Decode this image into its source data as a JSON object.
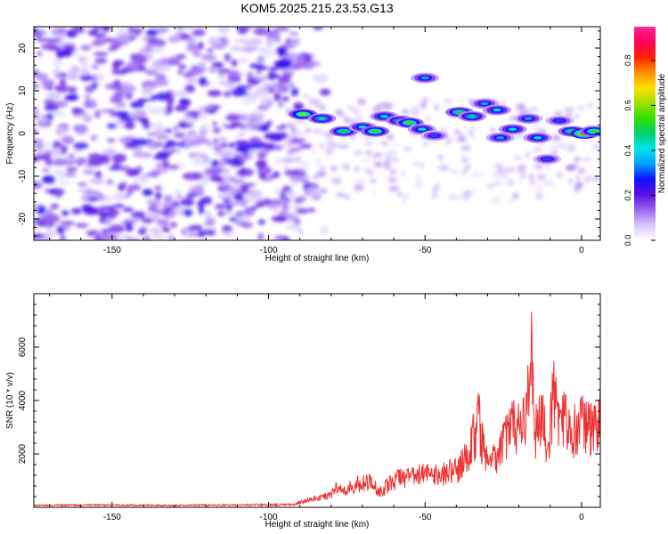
{
  "title": "KOM5.2025.215.23.53.G13",
  "colors": {
    "snr_line": "#ee3030",
    "colorbar": [
      "#ffffff",
      "#d8c8ff",
      "#9a66f0",
      "#5a10e0",
      "#1010ff",
      "#00a0ff",
      "#00e6e6",
      "#00d070",
      "#30e000",
      "#a0e000",
      "#ffe000",
      "#ff8c00",
      "#ff2000",
      "#ff0060",
      "#ff2890"
    ]
  },
  "chart_data": [
    {
      "type": "heatmap",
      "title": "KOM5.2025.215.23.53.G13",
      "xlabel": "Height of straight line (km)",
      "ylabel": "Frequency (Hz)",
      "xlim": [
        -175,
        6
      ],
      "ylim": [
        -25,
        25
      ],
      "xticks": [
        -150,
        -100,
        -50,
        0
      ],
      "yticks": [
        -20,
        -10,
        0,
        10,
        20
      ],
      "colorbar": {
        "label": "Normalized spectral amplitude",
        "range": [
          0,
          0.95
        ],
        "ticks": [
          "0.0",
          "0.2",
          "0.4",
          "0.6",
          "0.8"
        ]
      },
      "blobs": [
        {
          "x": -89,
          "y": 4.5,
          "amp": 0.6
        },
        {
          "x": -83,
          "y": 3.5,
          "amp": 0.45
        },
        {
          "x": -76,
          "y": 0.5,
          "amp": 0.5
        },
        {
          "x": -70,
          "y": 1.5,
          "amp": 0.4
        },
        {
          "x": -66,
          "y": 0.5,
          "amp": 0.55
        },
        {
          "x": -63,
          "y": 4.0,
          "amp": 0.4
        },
        {
          "x": -58,
          "y": 3.0,
          "amp": 0.45
        },
        {
          "x": -55,
          "y": 2.5,
          "amp": 0.55
        },
        {
          "x": -51,
          "y": 1.0,
          "amp": 0.4
        },
        {
          "x": -50,
          "y": 13.0,
          "amp": 0.35
        },
        {
          "x": -47,
          "y": -0.5,
          "amp": 0.3
        },
        {
          "x": -39,
          "y": 5.0,
          "amp": 0.5
        },
        {
          "x": -35,
          "y": 4.0,
          "amp": 0.45
        },
        {
          "x": -31,
          "y": 7.0,
          "amp": 0.35
        },
        {
          "x": -27,
          "y": 5.5,
          "amp": 0.4
        },
        {
          "x": -26,
          "y": -1.0,
          "amp": 0.35
        },
        {
          "x": -22,
          "y": 1.0,
          "amp": 0.4
        },
        {
          "x": -17,
          "y": 3.5,
          "amp": 0.35
        },
        {
          "x": -14,
          "y": -1.0,
          "amp": 0.4
        },
        {
          "x": -11,
          "y": -6.0,
          "amp": 0.3
        },
        {
          "x": -7,
          "y": 3.0,
          "amp": 0.3
        },
        {
          "x": -3,
          "y": 0.5,
          "amp": 0.5
        },
        {
          "x": 1,
          "y": 0.0,
          "amp": 0.85
        },
        {
          "x": 4,
          "y": 0.5,
          "amp": 0.55
        }
      ]
    },
    {
      "type": "line",
      "xlabel": "Height of straight line (km)",
      "ylabel": "SNR (10 * v/v)",
      "xlim": [
        -175,
        6
      ],
      "ylim": [
        0,
        8000
      ],
      "xticks": [
        -150,
        -100,
        -50,
        0
      ],
      "yticks": [
        2000,
        4000,
        6000
      ],
      "grid": false,
      "series": [
        {
          "x": [
            -175,
            -160,
            -145,
            -130,
            -115,
            -100,
            -92,
            -88,
            -84,
            -80,
            -78,
            -76,
            -72,
            -68,
            -64,
            -60,
            -56,
            -52,
            -48,
            -44,
            -40,
            -36,
            -33,
            -30,
            -27,
            -24,
            -21,
            -19,
            -17,
            -16,
            -15,
            -13,
            -11,
            -9,
            -7,
            -5,
            -3,
            0,
            3,
            6
          ],
          "y": [
            100,
            120,
            110,
            100,
            120,
            130,
            150,
            350,
            500,
            600,
            1100,
            800,
            1200,
            1300,
            800,
            1400,
            1500,
            1700,
            1600,
            1800,
            1900,
            2700,
            4500,
            2000,
            2600,
            3500,
            4300,
            4000,
            5500,
            7500,
            3500,
            5000,
            3000,
            5800,
            4000,
            4500,
            3800,
            4200,
            4100,
            4500
          ]
        }
      ]
    }
  ]
}
